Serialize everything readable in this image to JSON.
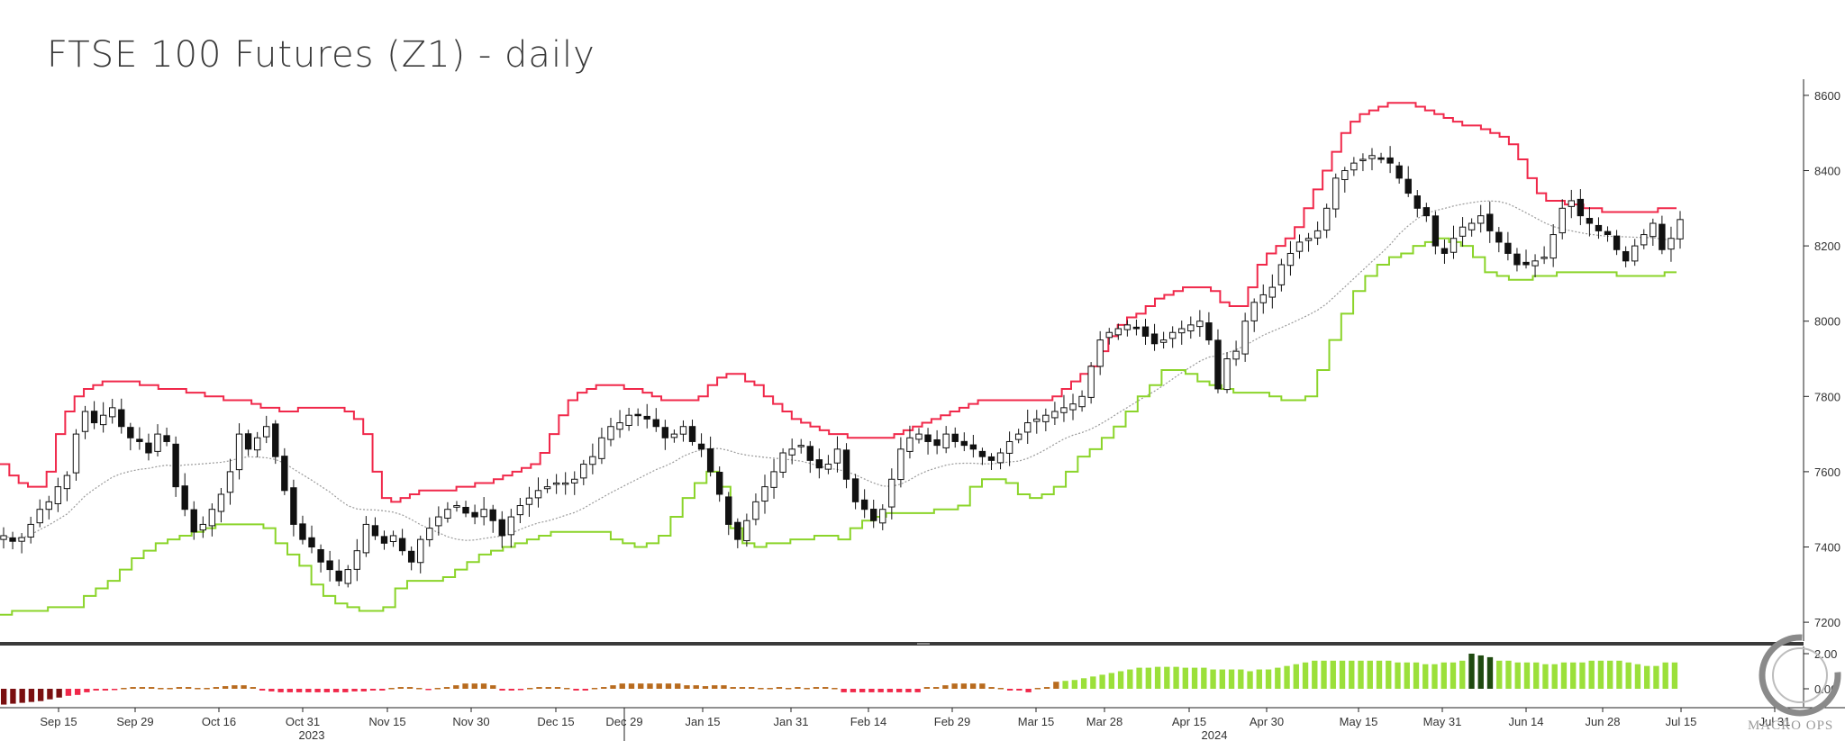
{
  "chart_data": [
    {
      "type": "candlestick",
      "title": "FTSE 100 Futures (Z1) - daily",
      "ylim": [
        7150,
        8650
      ],
      "y_ticks": [
        7200,
        7400,
        7600,
        7800,
        8000,
        8200,
        8400,
        8600
      ],
      "x_ticks": [
        "Sep 15",
        "Sep 29",
        "Oct 16",
        "Oct 31",
        "Nov 15",
        "Nov 30",
        "Dec 15",
        "Dec 29",
        "Jan 15",
        "Jan 31",
        "Feb 14",
        "Feb 29",
        "Mar 15",
        "Mar 28",
        "Apr 15",
        "Apr 30",
        "May 15",
        "May 31",
        "Jun 14",
        "Jun 28",
        "Jul 15",
        "Jul 31"
      ],
      "year_labels": [
        "2023",
        "2024"
      ],
      "series": [
        {
          "name": "close",
          "style": "candles",
          "values": [
            7430,
            7415,
            7425,
            7460,
            7500,
            7520,
            7560,
            7590,
            7700,
            7760,
            7730,
            7750,
            7770,
            7720,
            7690,
            7680,
            7650,
            7700,
            7680,
            7560,
            7500,
            7440,
            7460,
            7500,
            7540,
            7600,
            7700,
            7660,
            7690,
            7720,
            7640,
            7550,
            7460,
            7420,
            7400,
            7360,
            7340,
            7310,
            7340,
            7390,
            7460,
            7430,
            7410,
            7430,
            7390,
            7360,
            7420,
            7450,
            7480,
            7500,
            7510,
            7490,
            7480,
            7500,
            7470,
            7430,
            7480,
            7510,
            7530,
            7550,
            7560,
            7570,
            7570,
            7580,
            7620,
            7640,
            7690,
            7720,
            7730,
            7750,
            7750,
            7740,
            7720,
            7690,
            7700,
            7720,
            7680,
            7660,
            7600,
            7540,
            7460,
            7420,
            7470,
            7520,
            7560,
            7600,
            7650,
            7660,
            7670,
            7630,
            7610,
            7620,
            7660,
            7580,
            7520,
            7500,
            7470,
            7500,
            7580,
            7660,
            7690,
            7700,
            7680,
            7670,
            7700,
            7680,
            7670,
            7660,
            7640,
            7630,
            7650,
            7680,
            7700,
            7730,
            7740,
            7750,
            7760,
            7770,
            7780,
            7800,
            7880,
            7950,
            7970,
            7980,
            7990,
            7980,
            7960,
            7940,
            7950,
            7970,
            7980,
            7990,
            8000,
            7950,
            7820,
            7900,
            7920,
            8000,
            8050,
            8070,
            8090,
            8150,
            8180,
            8210,
            8220,
            8240,
            8300,
            8380,
            8400,
            8420,
            8430,
            8440,
            8430,
            8420,
            8380,
            8340,
            8300,
            8280,
            8200,
            8180,
            8220,
            8250,
            8260,
            8280,
            8240,
            8210,
            8180,
            8150,
            8150,
            8160,
            8170,
            8230,
            8300,
            8320,
            8280,
            8260,
            8240,
            8230,
            8190,
            8160,
            8200,
            8230,
            8260,
            8190,
            8220,
            8270
          ]
        },
        {
          "name": "upper band",
          "style": "step",
          "color": "#f0284a",
          "values": [
            7620,
            7590,
            7570,
            7560,
            7560,
            7600,
            7700,
            7760,
            7800,
            7820,
            7830,
            7840,
            7840,
            7840,
            7840,
            7830,
            7830,
            7820,
            7820,
            7820,
            7810,
            7810,
            7800,
            7800,
            7790,
            7790,
            7790,
            7780,
            7770,
            7770,
            7760,
            7760,
            7770,
            7770,
            7770,
            7770,
            7770,
            7760,
            7740,
            7700,
            7600,
            7530,
            7520,
            7530,
            7540,
            7550,
            7550,
            7550,
            7550,
            7560,
            7560,
            7570,
            7570,
            7580,
            7590,
            7600,
            7610,
            7620,
            7650,
            7700,
            7750,
            7790,
            7810,
            7820,
            7830,
            7830,
            7830,
            7820,
            7820,
            7810,
            7800,
            7790,
            7790,
            7790,
            7790,
            7800,
            7830,
            7850,
            7860,
            7860,
            7840,
            7830,
            7800,
            7780,
            7760,
            7740,
            7730,
            7720,
            7710,
            7700,
            7700,
            7690,
            7690,
            7690,
            7690,
            7690,
            7700,
            7710,
            7720,
            7730,
            7740,
            7750,
            7760,
            7770,
            7780,
            7790,
            7790,
            7790,
            7790,
            7790,
            7790,
            7790,
            7790,
            7800,
            7820,
            7840,
            7860,
            7880,
            7920,
            7960,
            7990,
            8010,
            8020,
            8040,
            8060,
            8070,
            8080,
            8090,
            8090,
            8090,
            8080,
            8050,
            8040,
            8040,
            8090,
            8150,
            8180,
            8200,
            8220,
            8250,
            8300,
            8350,
            8400,
            8450,
            8500,
            8530,
            8550,
            8560,
            8570,
            8580,
            8580,
            8580,
            8570,
            8560,
            8550,
            8540,
            8530,
            8520,
            8520,
            8510,
            8500,
            8490,
            8470,
            8430,
            8380,
            8340,
            8320,
            8320,
            8310,
            8310,
            8300,
            8300,
            8290,
            8290,
            8290,
            8290,
            8290,
            8290,
            8300,
            8300
          ],
          "x_index_offset": 0
        },
        {
          "name": "lower band",
          "style": "step",
          "color": "#8bd42a",
          "values": [
            7220,
            7230,
            7230,
            7230,
            7240,
            7240,
            7240,
            7270,
            7290,
            7310,
            7340,
            7370,
            7390,
            7410,
            7420,
            7430,
            7440,
            7450,
            7460,
            7460,
            7460,
            7460,
            7450,
            7410,
            7380,
            7350,
            7300,
            7270,
            7250,
            7240,
            7230,
            7230,
            7240,
            7290,
            7310,
            7310,
            7310,
            7320,
            7340,
            7360,
            7380,
            7390,
            7400,
            7410,
            7420,
            7430,
            7440,
            7440,
            7440,
            7440,
            7440,
            7420,
            7410,
            7400,
            7410,
            7430,
            7480,
            7530,
            7570,
            7600,
            7560,
            7450,
            7410,
            7400,
            7410,
            7410,
            7420,
            7420,
            7430,
            7430,
            7420,
            7450,
            7470,
            7480,
            7490,
            7490,
            7490,
            7490,
            7500,
            7500,
            7510,
            7560,
            7580,
            7580,
            7570,
            7540,
            7530,
            7540,
            7560,
            7600,
            7640,
            7660,
            7690,
            7720,
            7760,
            7800,
            7830,
            7870,
            7870,
            7860,
            7840,
            7830,
            7820,
            7810,
            7810,
            7810,
            7800,
            7790,
            7790,
            7800,
            7870,
            7950,
            8020,
            8080,
            8120,
            8150,
            8170,
            8180,
            8200,
            8210,
            8220,
            8210,
            8200,
            8170,
            8130,
            8120,
            8110,
            8110,
            8120,
            8120,
            8130,
            8130,
            8130,
            8130,
            8130,
            8120,
            8120,
            8120,
            8120,
            8130
          ]
        },
        {
          "name": "moving average",
          "style": "dotted",
          "color": "#b0b0b0"
        }
      ]
    },
    {
      "type": "bar",
      "y_ticks": [
        "2.00",
        "0.00"
      ],
      "ylim": [
        -0.8,
        2.3
      ],
      "colors": {
        "dark_red": "#7a0f10",
        "red": "#f0284a",
        "brown": "#b86b1e",
        "green": "#9be03a",
        "dark_green": "#1f4a10"
      },
      "values": [
        -0.9,
        -0.85,
        -0.8,
        -0.75,
        -0.7,
        -0.6,
        -0.5,
        -0.4,
        -0.35,
        -0.2,
        -0.1,
        -0.1,
        -0.05,
        0.05,
        0.1,
        0.1,
        0.1,
        0.05,
        0.05,
        0.1,
        0.1,
        0.05,
        0.05,
        0.1,
        0.15,
        0.2,
        0.2,
        0.1,
        -0.1,
        -0.15,
        -0.2,
        -0.2,
        -0.2,
        -0.2,
        -0.2,
        -0.2,
        -0.2,
        -0.2,
        -0.15,
        -0.15,
        -0.1,
        -0.1,
        0.05,
        0.1,
        0.1,
        0.05,
        -0.05,
        0.05,
        0.1,
        0.2,
        0.3,
        0.3,
        0.3,
        0.2,
        -0.1,
        -0.1,
        -0.05,
        0.05,
        0.1,
        0.1,
        0.1,
        0.05,
        -0.1,
        -0.1,
        0.05,
        0.1,
        0.2,
        0.3,
        0.3,
        0.3,
        0.3,
        0.3,
        0.3,
        0.3,
        0.2,
        0.2,
        0.15,
        0.2,
        0.2,
        0.1,
        0.1,
        0.1,
        0.05,
        0.05,
        0.1,
        0.05,
        0.1,
        0.05,
        0.1,
        0.1,
        0.05,
        -0.2,
        -0.2,
        -0.2,
        -0.2,
        -0.2,
        -0.2,
        -0.2,
        -0.2,
        -0.2,
        0.1,
        0.1,
        0.2,
        0.3,
        0.3,
        0.3,
        0.3,
        0.1,
        0.05,
        -0.1,
        -0.1,
        -0.2,
        0.05,
        0.1,
        0.4,
        0.45,
        0.5,
        0.6,
        0.7,
        0.8,
        0.9,
        1.0,
        1.1,
        1.2,
        1.2,
        1.25,
        1.25,
        1.25,
        1.2,
        1.2,
        1.2,
        1.1,
        1.1,
        1.1,
        1.1,
        1.0,
        1.1,
        1.1,
        1.2,
        1.3,
        1.4,
        1.5,
        1.6,
        1.6,
        1.6,
        1.6,
        1.6,
        1.6,
        1.6,
        1.6,
        1.6,
        1.5,
        1.5,
        1.5,
        1.4,
        1.4,
        1.5,
        1.5,
        1.6,
        2.0,
        1.9,
        1.8,
        1.6,
        1.6,
        1.5,
        1.5,
        1.5,
        1.4,
        1.4,
        1.5,
        1.5,
        1.5,
        1.6,
        1.6,
        1.6,
        1.6,
        1.5,
        1.4,
        1.3,
        1.3,
        1.5,
        1.5
      ]
    }
  ]
}
